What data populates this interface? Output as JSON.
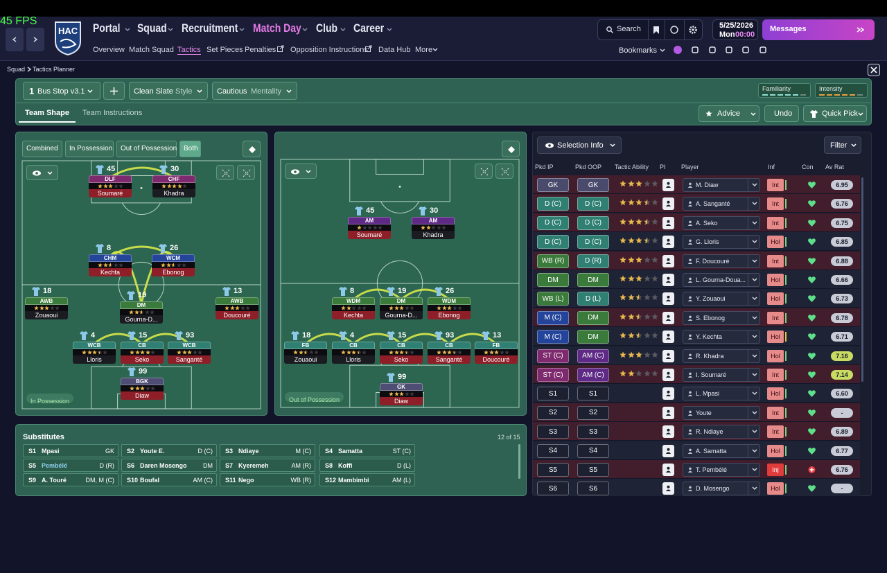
{
  "fps": "45 FPS",
  "club_badge": "HAC",
  "nav": {
    "main": [
      "Portal",
      "Squad",
      "Recruitment",
      "Match Day",
      "Club",
      "Career"
    ],
    "sub": [
      "Overview",
      "Match Squad",
      "Tactics",
      "Set Pieces",
      "Penalties",
      "Opposition Instructions",
      "Data Hub",
      "More"
    ]
  },
  "header": {
    "search": "Search",
    "date": "5/25/2026",
    "day": "Mon",
    "time": "00:00",
    "messages": "Messages",
    "bookmarks": "Bookmarks"
  },
  "breadcrumb": [
    "Squad",
    "Tactics Planner"
  ],
  "toolbar": {
    "slot": "1",
    "tactic": "Bus Stop v3.1",
    "style_value": "Clean Slate",
    "style_label": "Style",
    "mentality_value": "Cautious",
    "mentality_label": "Mentality",
    "familiarity": "Familiarity",
    "intensity": "Intensity"
  },
  "tabs": [
    "Team Shape",
    "Team Instructions"
  ],
  "actions": [
    "Advice",
    "Undo",
    "Quick Pick"
  ],
  "view_modes": [
    "Combined",
    "In Possession",
    "Out of Possession",
    "Both"
  ],
  "pitches": [
    {
      "label": "In Possession",
      "players": [
        {
          "number": "45",
          "role": "DLF",
          "stars": 3,
          "name": "Soumaré"
        },
        {
          "number": "30",
          "role": "CHF",
          "stars": 4,
          "name": "Khadra"
        },
        {
          "number": "8",
          "role": "CHM",
          "stars": 2.5,
          "name": "Kechta"
        },
        {
          "number": "26",
          "role": "WCM",
          "stars": 2.5,
          "name": "Ebonog"
        },
        {
          "number": "18",
          "role": "AWB",
          "stars": 3,
          "name": "Zouaoui"
        },
        {
          "number": "19",
          "role": "DM",
          "stars": 2.5,
          "name": "Gourna-D..."
        },
        {
          "number": "13",
          "role": "AWB",
          "stars": 3,
          "name": "Doucouré"
        },
        {
          "number": "4",
          "role": "WCB",
          "stars": 3.5,
          "name": "Lloris"
        },
        {
          "number": "15",
          "role": "CB",
          "stars": 4,
          "name": "Seko"
        },
        {
          "number": "93",
          "role": "WCB",
          "stars": 3,
          "name": "Sanganté"
        },
        {
          "number": "99",
          "role": "BGK",
          "stars": 3,
          "name": "Diaw"
        }
      ]
    },
    {
      "label": "Out of Possession",
      "players": [
        {
          "number": "45",
          "role": "AM",
          "stars": 1,
          "name": "Soumaré"
        },
        {
          "number": "30",
          "role": "AM",
          "stars": 2,
          "name": "Khadra"
        },
        {
          "number": "8",
          "role": "WDM",
          "stars": 2,
          "name": "Kechta"
        },
        {
          "number": "19",
          "role": "DM",
          "stars": 3,
          "name": "Gourna-D..."
        },
        {
          "number": "26",
          "role": "WDM",
          "stars": 3,
          "name": "Ebonog"
        },
        {
          "number": "18",
          "role": "FB",
          "stars": 2.5,
          "name": "Zouaoui"
        },
        {
          "number": "4",
          "role": "CB",
          "stars": 3.5,
          "name": "Lloris"
        },
        {
          "number": "15",
          "role": "CB",
          "stars": 3.5,
          "name": "Seko"
        },
        {
          "number": "93",
          "role": "CB",
          "stars": 3.5,
          "name": "Sanganté"
        },
        {
          "number": "13",
          "role": "FB",
          "stars": 3,
          "name": "Doucouré"
        },
        {
          "number": "99",
          "role": "GK",
          "stars": 3,
          "name": "Diaw"
        }
      ]
    }
  ],
  "substitutes": {
    "title": "Substitutes",
    "count": "12 of 15",
    "players": [
      {
        "slot": "S1",
        "name": "Mpasi",
        "position": "GK"
      },
      {
        "slot": "S2",
        "name": "Youte E.",
        "position": "D (C)"
      },
      {
        "slot": "S3",
        "name": "Ndiaye",
        "position": "M (C)"
      },
      {
        "slot": "S4",
        "name": "Samatta",
        "position": "ST (C)"
      },
      {
        "slot": "S5",
        "name": "Pembélé",
        "position": "D (R)"
      },
      {
        "slot": "S6",
        "name": "Daren Mosengo",
        "position": "DM"
      },
      {
        "slot": "S7",
        "name": "Kyeremeh",
        "position": "AM (R)"
      },
      {
        "slot": "S8",
        "name": "Koffi",
        "position": "D (L)"
      },
      {
        "slot": "S9",
        "name": "A. Touré",
        "position": "DM, M (C)"
      },
      {
        "slot": "S10",
        "name": "Boufal",
        "position": "AM (C)"
      },
      {
        "slot": "S11",
        "name": "Nego",
        "position": "WB (R)"
      },
      {
        "slot": "S12",
        "name": "Mambimbi",
        "position": "AM (L)"
      }
    ]
  },
  "selection": {
    "dropdown": "Selection Info",
    "filter": "Filter",
    "columns": [
      "Pkd IP",
      "Pkd OOP",
      "Tactic Ability",
      "PI",
      "Player",
      "Inf",
      "Con",
      "Av Rat"
    ],
    "rows": [
      {
        "ip": "GK",
        "oop": "GK",
        "stars": 3,
        "player": "M. Diaw",
        "inf": "Int",
        "rating": "6.95"
      },
      {
        "ip": "D (C)",
        "oop": "D (C)",
        "stars": 3.5,
        "player": "A. Sanganté",
        "inf": "Int",
        "rating": "6.76"
      },
      {
        "ip": "D (C)",
        "oop": "D (C)",
        "stars": 3.5,
        "player": "A. Seko",
        "inf": "Int",
        "rating": "6.75"
      },
      {
        "ip": "D (C)",
        "oop": "D (C)",
        "stars": 3.5,
        "player": "G. Lloris",
        "inf": "Hol",
        "rating": "6.85"
      },
      {
        "ip": "WB (R)",
        "oop": "D (R)",
        "stars": 3,
        "player": "F. Doucouré",
        "inf": "Int",
        "rating": "6.88"
      },
      {
        "ip": "DM",
        "oop": "DM",
        "stars": 3,
        "player": "L. Gourna-Doua...",
        "inf": "Hol",
        "rating": "6.66"
      },
      {
        "ip": "WB (L)",
        "oop": "D (L)",
        "stars": 2.5,
        "player": "Y. Zouaoui",
        "inf": "Hol",
        "rating": "6.73"
      },
      {
        "ip": "M (C)",
        "oop": "DM",
        "stars": 2.5,
        "player": "S. Ebonog",
        "inf": "Int",
        "rating": "6.78"
      },
      {
        "ip": "M (C)",
        "oop": "DM",
        "stars": 2.5,
        "player": "Y. Kechta",
        "inf": "Hol",
        "rating": "6.71"
      },
      {
        "ip": "ST (C)",
        "oop": "AM (C)",
        "stars": 3,
        "player": "R. Khadra",
        "inf": "Hol",
        "rating": "7.16"
      },
      {
        "ip": "ST (C)",
        "oop": "AM (C)",
        "stars": 2,
        "player": "I. Soumaré",
        "inf": "Int",
        "rating": "7.14"
      },
      {
        "ip": "S1",
        "oop": "S1",
        "player": "L. Mpasi",
        "inf": "Hol",
        "rating": "6.60"
      },
      {
        "ip": "S2",
        "oop": "S2",
        "player": "Youte",
        "inf": "Int",
        "rating": "-"
      },
      {
        "ip": "S3",
        "oop": "S3",
        "player": "R. Ndiaye",
        "inf": "Int",
        "rating": "6.89"
      },
      {
        "ip": "S4",
        "oop": "S4",
        "player": "A. Samatta",
        "inf": "Hol",
        "rating": "6.77"
      },
      {
        "ip": "S5",
        "oop": "S5",
        "player": "T. Pembélé",
        "inf": "Inj",
        "rating": "6.76"
      },
      {
        "ip": "S6",
        "oop": "S6",
        "player": "D. Mosengo",
        "inf": "Hol",
        "rating": "-"
      }
    ]
  }
}
